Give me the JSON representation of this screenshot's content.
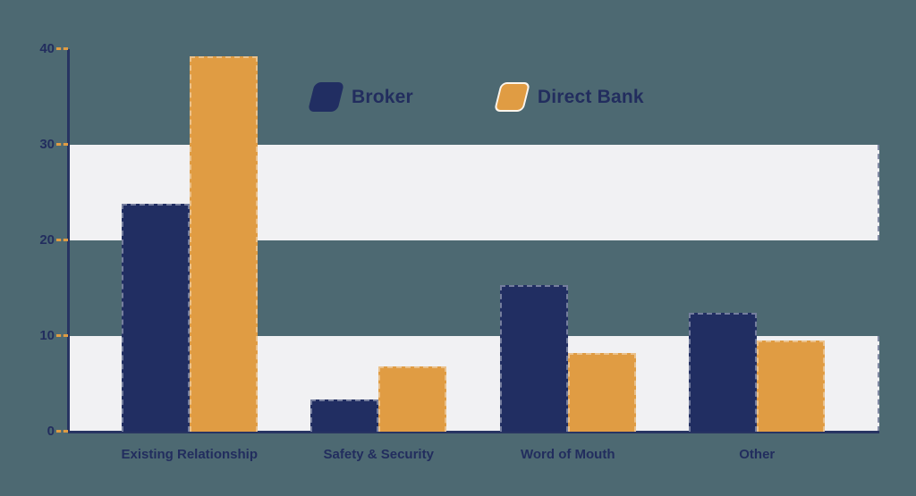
{
  "chart_data": {
    "type": "bar",
    "title": "",
    "categories": [
      "Existing Relationship",
      "Safety & Security",
      "Word of Mouth",
      "Other"
    ],
    "series": [
      {
        "name": "Broker",
        "color": "#212e62",
        "values": [
          23.8,
          3.4,
          15.3,
          12.4
        ]
      },
      {
        "name": "Direct Bank",
        "color": "#e09c43",
        "values": [
          39.3,
          6.8,
          8.2,
          9.5
        ]
      }
    ],
    "ylim": [
      0,
      40
    ],
    "yticks": [
      0,
      10,
      20,
      30,
      40
    ],
    "band_ranges": [
      [
        0,
        10
      ],
      [
        20,
        30
      ]
    ],
    "grid": "alternating horizontal bands",
    "legend_position": "top-center",
    "xlabel": "",
    "ylabel": ""
  },
  "colors": {
    "background": "#4d6972",
    "band": "#f1f1f3",
    "axis": "#273462",
    "tick_dash": "#e09c43",
    "text": "#222d5e",
    "broker": "#212e62",
    "direct_bank": "#e09c43"
  }
}
